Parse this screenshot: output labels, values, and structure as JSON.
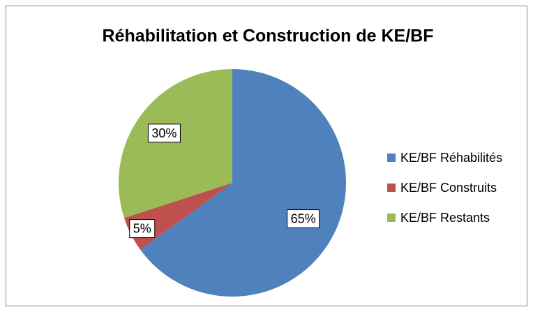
{
  "chart_data": {
    "type": "pie",
    "title": "Réhabilitation et Construction de KE/BF",
    "categories": [
      "KE/BF Réhabilités",
      "KE/BF Construits",
      "KE/BF Restants"
    ],
    "values": [
      65,
      5,
      30
    ],
    "value_labels": [
      "65%",
      "5%",
      "30%"
    ],
    "colors": [
      "#4f81bd",
      "#c0504d",
      "#9bbb59"
    ],
    "legend": "right"
  }
}
